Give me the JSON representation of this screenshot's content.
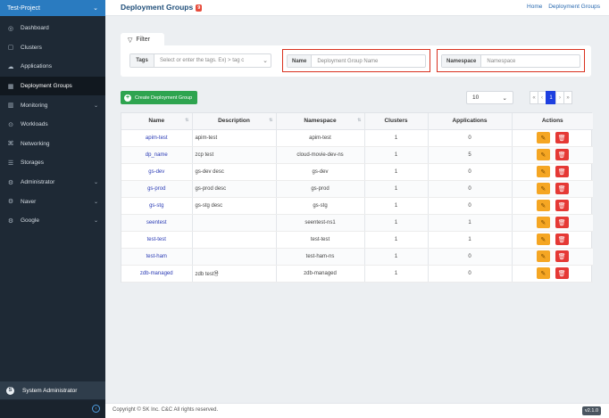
{
  "project": {
    "name": "Test-Project"
  },
  "sidebar": {
    "items": [
      {
        "label": "Dashboard",
        "icon": "dashboard-icon",
        "glyph": "◎",
        "has_arrow": false,
        "active": false
      },
      {
        "label": "Clusters",
        "icon": "clusters-icon",
        "glyph": "▢",
        "has_arrow": false,
        "active": false
      },
      {
        "label": "Applications",
        "icon": "applications-icon",
        "glyph": "☁",
        "has_arrow": false,
        "active": false
      },
      {
        "label": "Deployment Groups",
        "icon": "deployment-groups-icon",
        "glyph": "▦",
        "has_arrow": false,
        "active": true
      },
      {
        "label": "Monitoring",
        "icon": "monitoring-icon",
        "glyph": "▥",
        "has_arrow": true,
        "active": false
      },
      {
        "label": "Workloads",
        "icon": "workloads-icon",
        "glyph": "⊙",
        "has_arrow": false,
        "active": false
      },
      {
        "label": "Networking",
        "icon": "networking-icon",
        "glyph": "⌘",
        "has_arrow": false,
        "active": false
      },
      {
        "label": "Storages",
        "icon": "storages-icon",
        "glyph": "☰",
        "has_arrow": false,
        "active": false
      },
      {
        "label": "Administrator",
        "icon": "administrator-icon",
        "glyph": "⚙",
        "has_arrow": true,
        "active": false
      },
      {
        "label": "Naver",
        "icon": "naver-icon",
        "glyph": "⚙",
        "has_arrow": true,
        "active": false
      },
      {
        "label": "Google",
        "icon": "google-icon",
        "glyph": "⚙",
        "has_arrow": true,
        "active": false
      }
    ],
    "user": {
      "label": "System Administrator",
      "glyph": "S"
    }
  },
  "header": {
    "title": "Deployment Groups",
    "count": "9",
    "breadcrumb": [
      "Home",
      "Deployment Groups"
    ]
  },
  "filter": {
    "tab_label": "Filter",
    "tags_label": "Tags",
    "tags_placeholder": "Select or enter the tags. Ex) > tag c",
    "name_label": "Name",
    "name_placeholder": "Deployment Group Name",
    "namespace_label": "Namespace",
    "namespace_placeholder": "Namespace"
  },
  "toolbar": {
    "create_label": "Create Deployment Group",
    "page_size": "10",
    "pager": [
      "«",
      "‹",
      "1",
      "›",
      "»"
    ]
  },
  "table": {
    "columns": [
      "Name",
      "Description",
      "Namespace",
      "Clusters",
      "Applications",
      "Actions"
    ],
    "rows": [
      {
        "name": "apim-test",
        "description": "apim-test",
        "namespace": "apim-test",
        "clusters": "1",
        "applications": "0"
      },
      {
        "name": "dp_name",
        "description": "zcp test",
        "namespace": "cloud-movie-dev-ns",
        "clusters": "1",
        "applications": "5"
      },
      {
        "name": "gs-dev",
        "description": "gs-dev desc",
        "namespace": "gs-dev",
        "clusters": "1",
        "applications": "0"
      },
      {
        "name": "gs-prod",
        "description": "gs-prod desc",
        "namespace": "gs-prod",
        "clusters": "1",
        "applications": "0"
      },
      {
        "name": "gs-stg",
        "description": "gs-stg desc",
        "namespace": "gs-stg",
        "clusters": "1",
        "applications": "0"
      },
      {
        "name": "seentest",
        "description": "",
        "namespace": "seentest-ns1",
        "clusters": "1",
        "applications": "1"
      },
      {
        "name": "test-test",
        "description": "",
        "namespace": "test-test",
        "clusters": "1",
        "applications": "1"
      },
      {
        "name": "test-ham",
        "description": "",
        "namespace": "test-ham-ns",
        "clusters": "1",
        "applications": "0"
      },
      {
        "name": "zdb-managed",
        "description": "zdb test용",
        "namespace": "zdb-managed",
        "clusters": "1",
        "applications": "0"
      }
    ]
  },
  "footer": {
    "copyright": "Copyright © SK Inc. C&C All rights reserved.",
    "version": "v2.1.0"
  },
  "colors": {
    "sidebar_bg": "#1e2935",
    "project_bar": "#2a7bc0",
    "highlight_border": "#d9311f",
    "create_button": "#2ea44f",
    "edit_button": "#f5a623",
    "delete_button": "#e53935",
    "active_page": "#1e40e0"
  }
}
